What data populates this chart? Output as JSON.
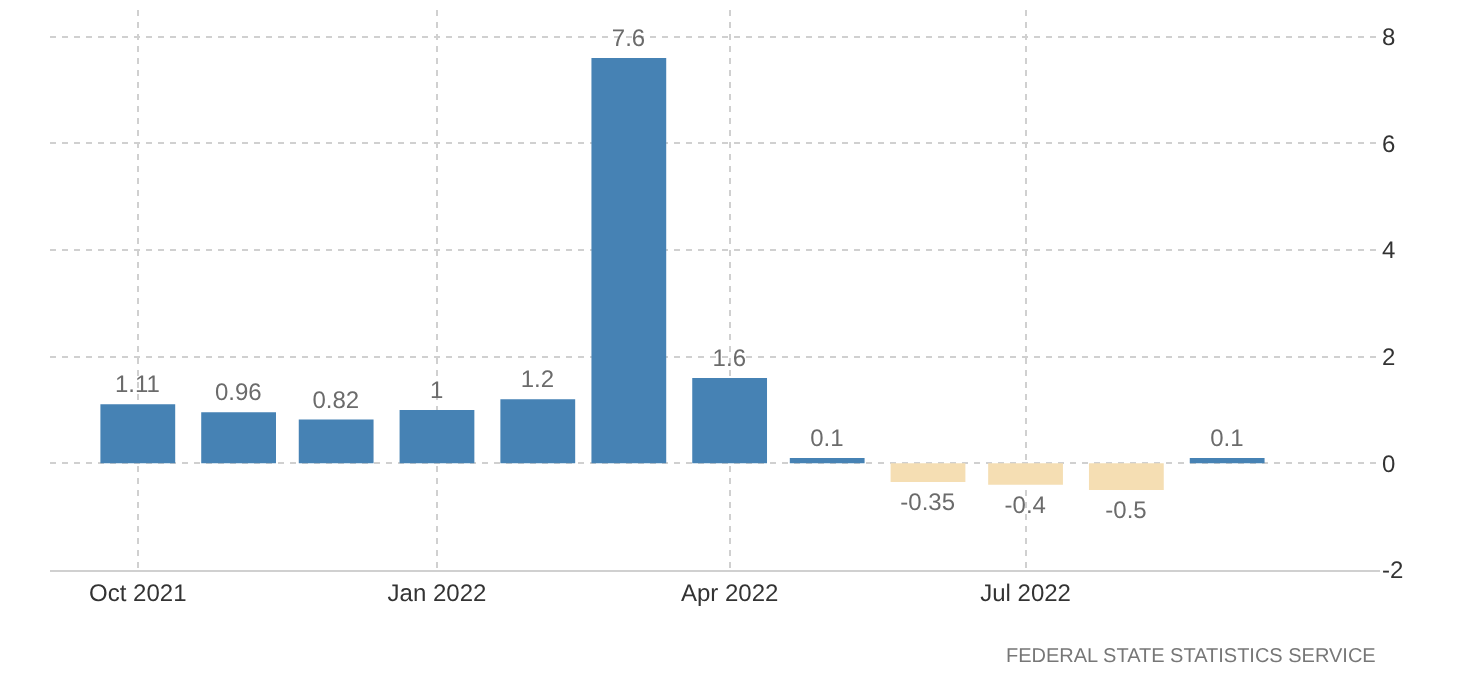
{
  "chart_data": {
    "type": "bar",
    "x": [
      "2021-10",
      "2021-11",
      "2021-12",
      "2022-01",
      "2022-02",
      "2022-03",
      "2022-04",
      "2022-05",
      "2022-06",
      "2022-07",
      "2022-08",
      "2022-09"
    ],
    "values": [
      1.11,
      0.96,
      0.82,
      1,
      1.2,
      7.6,
      1.6,
      0.1,
      -0.35,
      -0.4,
      -0.5,
      0.1
    ],
    "colors": [
      "#4682b4",
      "#4682b4",
      "#4682b4",
      "#4682b4",
      "#4682b4",
      "#4682b4",
      "#4682b4",
      "#4682b4",
      "#f5deb3",
      "#f5deb3",
      "#f5deb3",
      "#4682b4"
    ],
    "data_labels": true,
    "xlim": [
      "2021-09-04",
      "2022-10-18"
    ],
    "xticks": [
      {
        "value": "2021-10",
        "label": "Oct 2021"
      },
      {
        "value": "2022-01",
        "label": "Jan 2022"
      },
      {
        "value": "2022-04",
        "label": "Apr 2022"
      },
      {
        "value": "2022-07",
        "label": "Jul 2022"
      }
    ],
    "ylim": [
      -2,
      8.5
    ],
    "yticks": [
      -2,
      0,
      2,
      4,
      6,
      8
    ],
    "grid": true,
    "annotations": [
      "FEDERAL STATE STATISTICS SERVICE"
    ]
  }
}
